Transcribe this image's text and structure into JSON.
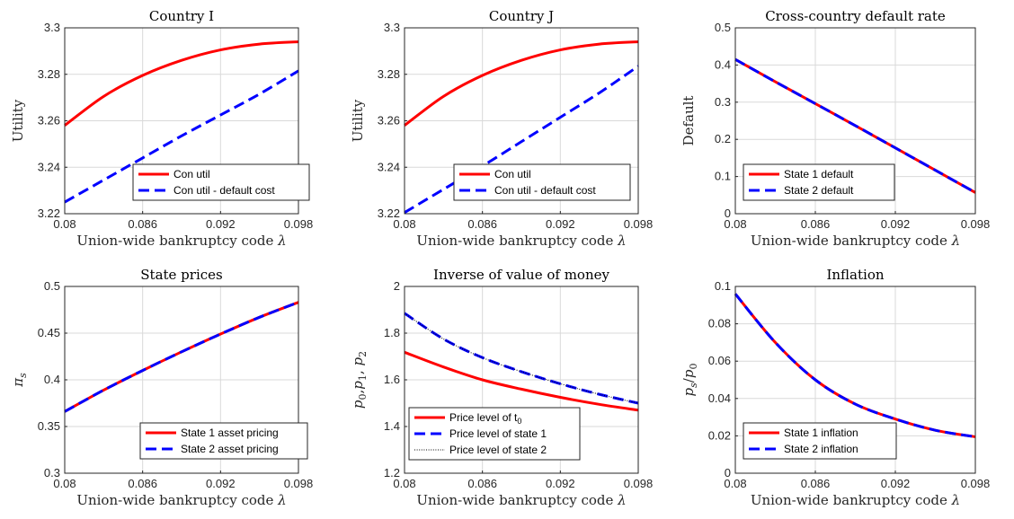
{
  "chart_data": [
    {
      "type": "line",
      "title": "Country I",
      "xlabel": "Union-wide bankruptcy code λ",
      "ylabel": "Utility",
      "xlim": [
        0.08,
        0.098
      ],
      "ylim": [
        3.22,
        3.3
      ],
      "xticks": [
        0.08,
        0.086,
        0.092,
        0.098
      ],
      "yticks": [
        3.22,
        3.24,
        3.26,
        3.28,
        3.3
      ],
      "xtick_labels": [
        "0.08",
        "0.086",
        "0.092",
        "0.098"
      ],
      "ytick_labels": [
        "3.22",
        "3.24",
        "3.26",
        "3.28",
        "3.3"
      ],
      "grid": true,
      "legend_position": "bottom-right",
      "x": [
        0.08,
        0.083,
        0.086,
        0.089,
        0.092,
        0.095,
        0.098
      ],
      "series": [
        {
          "name": "Con util",
          "color": "#ff0000",
          "style": "solid",
          "values": [
            3.258,
            3.2705,
            3.2795,
            3.286,
            3.2905,
            3.293,
            3.294
          ]
        },
        {
          "name": "Con util - default cost",
          "color": "#0000ff",
          "style": "dashed",
          "values": [
            3.225,
            3.2345,
            3.244,
            3.2535,
            3.2625,
            3.2715,
            3.2815
          ]
        }
      ]
    },
    {
      "type": "line",
      "title": "Country J",
      "xlabel": "Union-wide bankruptcy code λ",
      "ylabel": "Utility",
      "xlim": [
        0.08,
        0.098
      ],
      "ylim": [
        3.22,
        3.3
      ],
      "xticks": [
        0.08,
        0.086,
        0.092,
        0.098
      ],
      "yticks": [
        3.22,
        3.24,
        3.26,
        3.28,
        3.3
      ],
      "xtick_labels": [
        "0.08",
        "0.086",
        "0.092",
        "0.098"
      ],
      "ytick_labels": [
        "3.22",
        "3.24",
        "3.26",
        "3.28",
        "3.3"
      ],
      "grid": true,
      "legend_position": "bottom-right",
      "x": [
        0.08,
        0.083,
        0.086,
        0.089,
        0.092,
        0.095,
        0.098
      ],
      "series": [
        {
          "name": "Con util",
          "color": "#ff0000",
          "style": "solid",
          "values": [
            3.258,
            3.2705,
            3.2795,
            3.286,
            3.2905,
            3.293,
            3.294
          ]
        },
        {
          "name": "Con util - default cost",
          "color": "#0000ff",
          "style": "dashed",
          "values": [
            3.2205,
            3.2305,
            3.2405,
            3.251,
            3.2615,
            3.272,
            3.2835
          ]
        }
      ]
    },
    {
      "type": "line",
      "title": "Cross-country default rate",
      "xlabel": "Union-wide bankruptcy code λ",
      "ylabel": "Default",
      "xlim": [
        0.08,
        0.098
      ],
      "ylim": [
        0,
        0.5
      ],
      "xticks": [
        0.08,
        0.086,
        0.092,
        0.098
      ],
      "yticks": [
        0,
        0.1,
        0.2,
        0.3,
        0.4,
        0.5
      ],
      "xtick_labels": [
        "0.08",
        "0.086",
        "0.092",
        "0.098"
      ],
      "ytick_labels": [
        "0",
        "0.1",
        "0.2",
        "0.3",
        "0.4",
        "0.5"
      ],
      "grid": true,
      "legend_position": "bottom-left",
      "x": [
        0.08,
        0.083,
        0.086,
        0.089,
        0.092,
        0.095,
        0.098
      ],
      "series": [
        {
          "name": "State 1 default",
          "color": "#ff0000",
          "style": "solid",
          "values": [
            0.415,
            0.355,
            0.296,
            0.237,
            0.177,
            0.117,
            0.057
          ]
        },
        {
          "name": "State 2 default",
          "color": "#0000ff",
          "style": "dashed",
          "values": [
            0.415,
            0.355,
            0.296,
            0.237,
            0.177,
            0.117,
            0.057
          ]
        }
      ]
    },
    {
      "type": "line",
      "title": "State prices",
      "xlabel": "Union-wide bankruptcy code λ",
      "ylabel": "π_s",
      "xlim": [
        0.08,
        0.098
      ],
      "ylim": [
        0.3,
        0.5
      ],
      "xticks": [
        0.08,
        0.086,
        0.092,
        0.098
      ],
      "yticks": [
        0.3,
        0.35,
        0.4,
        0.45,
        0.5
      ],
      "xtick_labels": [
        "0.08",
        "0.086",
        "0.092",
        "0.098"
      ],
      "ytick_labels": [
        "0.3",
        "0.35",
        "0.4",
        "0.45",
        "0.5"
      ],
      "grid": true,
      "legend_position": "bottom-right",
      "x": [
        0.08,
        0.083,
        0.086,
        0.089,
        0.092,
        0.095,
        0.098
      ],
      "series": [
        {
          "name": "State 1 asset pricing",
          "color": "#ff0000",
          "style": "solid",
          "values": [
            0.366,
            0.389,
            0.41,
            0.43,
            0.449,
            0.467,
            0.483
          ]
        },
        {
          "name": "State 2 asset pricing",
          "color": "#0000ff",
          "style": "dashed",
          "values": [
            0.366,
            0.389,
            0.41,
            0.43,
            0.449,
            0.467,
            0.483
          ]
        }
      ]
    },
    {
      "type": "line",
      "title": "Inverse of value of money",
      "xlabel": "Union-wide bankruptcy code λ",
      "ylabel": "p0,p1, p2",
      "xlim": [
        0.08,
        0.098
      ],
      "ylim": [
        1.2,
        2
      ],
      "xticks": [
        0.08,
        0.086,
        0.092,
        0.098
      ],
      "yticks": [
        1.2,
        1.4,
        1.6,
        1.8,
        2
      ],
      "xtick_labels": [
        "0.08",
        "0.086",
        "0.092",
        "0.098"
      ],
      "ytick_labels": [
        "1.2",
        "1.4",
        "1.6",
        "1.8",
        "2"
      ],
      "grid": true,
      "legend_position": "bottom-left",
      "x": [
        0.08,
        0.083,
        0.086,
        0.089,
        0.092,
        0.095,
        0.098
      ],
      "series": [
        {
          "name": "Price level of t",
          "name_sub": "0",
          "color": "#ff0000",
          "style": "solid",
          "values": [
            1.718,
            1.655,
            1.6,
            1.56,
            1.525,
            1.495,
            1.47
          ]
        },
        {
          "name": "Price level of state 1",
          "color": "#0000ff",
          "style": "dashed",
          "values": [
            1.885,
            1.775,
            1.695,
            1.635,
            1.583,
            1.538,
            1.5
          ]
        },
        {
          "name": "Price level of state 2",
          "color": "#000000",
          "style": "dotted",
          "values": [
            1.885,
            1.775,
            1.695,
            1.635,
            1.583,
            1.538,
            1.5
          ]
        }
      ]
    },
    {
      "type": "line",
      "title": "Inflation",
      "xlabel": "Union-wide bankruptcy code λ",
      "ylabel": "p_s/p_0",
      "xlim": [
        0.08,
        0.098
      ],
      "ylim": [
        0,
        0.1
      ],
      "xticks": [
        0.08,
        0.086,
        0.092,
        0.098
      ],
      "yticks": [
        0,
        0.02,
        0.04,
        0.06,
        0.08,
        0.1
      ],
      "xtick_labels": [
        "0.08",
        "0.086",
        "0.092",
        "0.098"
      ],
      "ytick_labels": [
        "0",
        "0.02",
        "0.04",
        "0.06",
        "0.08",
        "0.1"
      ],
      "grid": true,
      "legend_position": "bottom-right",
      "x": [
        0.08,
        0.083,
        0.086,
        0.089,
        0.092,
        0.095,
        0.098
      ],
      "series": [
        {
          "name": "State 1 inflation",
          "color": "#ff0000",
          "style": "solid",
          "values": [
            0.096,
            0.07,
            0.05,
            0.037,
            0.029,
            0.023,
            0.0195
          ]
        },
        {
          "name": "State 2 inflation",
          "color": "#0000ff",
          "style": "dashed",
          "values": [
            0.096,
            0.07,
            0.05,
            0.037,
            0.029,
            0.023,
            0.0195
          ]
        }
      ]
    }
  ]
}
